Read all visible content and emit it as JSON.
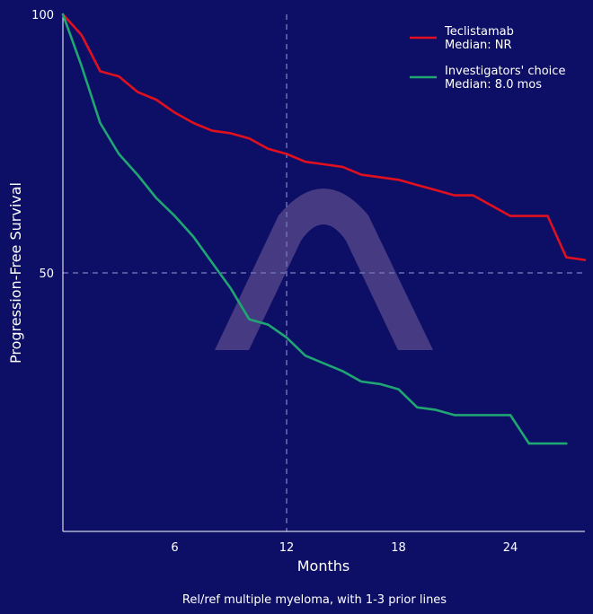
{
  "chart_data": {
    "type": "line",
    "title": "",
    "xlabel": "Months",
    "ylabel": "Progression-Free Survival",
    "caption": "Rel/ref multiple myeloma, with 1-3 prior lines",
    "xlim": [
      0,
      28
    ],
    "ylim": [
      0,
      100
    ],
    "xticks": [
      6,
      12,
      18,
      24
    ],
    "yticks": [
      50,
      100
    ],
    "reference_lines": {
      "x": 12,
      "y": 50
    },
    "grid": false,
    "legend": "top-right",
    "colors": {
      "background": "#0d0f66",
      "reference": "#6b6fb0",
      "watermark": "#5a4a8c"
    },
    "watermark_icon": "arch-logo",
    "series": [
      {
        "name": "Teclistamab",
        "label2": "Median: NR",
        "color": "#e0101e",
        "x": [
          0,
          1,
          2,
          3,
          4,
          5,
          6,
          7,
          8,
          9,
          10,
          11,
          12,
          13,
          14,
          15,
          16,
          17,
          18,
          19,
          20,
          21,
          22,
          23,
          24,
          25,
          26,
          27,
          28
        ],
        "y": [
          100,
          96,
          89,
          88,
          85,
          83.5,
          81,
          79,
          77.5,
          77,
          76,
          74,
          73,
          71.5,
          71,
          70.5,
          69,
          68.5,
          68,
          67,
          66,
          65,
          65,
          63,
          61,
          61,
          61,
          53,
          52.5
        ]
      },
      {
        "name": "Investigators' choice",
        "label2": "Median: 8.0 mos",
        "color": "#1fa672",
        "x": [
          0,
          1,
          2,
          3,
          4,
          5,
          6,
          7,
          8,
          9,
          10,
          11,
          12,
          13,
          14,
          15,
          16,
          17,
          18,
          19,
          20,
          21,
          22,
          23,
          24,
          25,
          26,
          27
        ],
        "y": [
          100,
          90,
          79,
          73,
          69,
          64.5,
          61,
          57,
          52,
          47,
          41,
          40,
          37.5,
          34,
          32.5,
          31,
          29,
          28.5,
          27.5,
          24,
          23.5,
          22.5,
          22.5,
          22.5,
          22.5,
          17,
          17,
          17
        ]
      }
    ]
  }
}
